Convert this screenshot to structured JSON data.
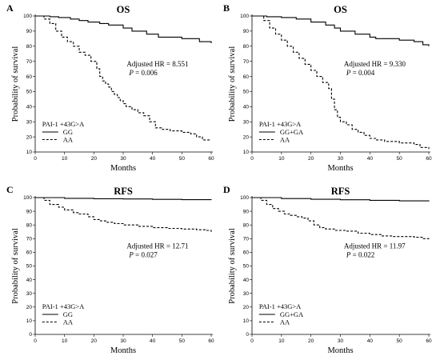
{
  "chart_data": [
    {
      "type": "line",
      "panel": "A",
      "title": "OS",
      "xlabel": "Months",
      "ylabel": "Probability of survival",
      "xlim": [
        0,
        60
      ],
      "ylim": [
        10,
        100
      ],
      "x_ticks": [
        0,
        10,
        20,
        30,
        40,
        50,
        60
      ],
      "y_ticks": [
        10,
        20,
        30,
        40,
        50,
        60,
        70,
        80,
        90,
        100
      ],
      "annotation": {
        "hr": "Adjusted HR = 8.551",
        "p_label": "P",
        "p_value": " = 0.006"
      },
      "legend_title": "PAI-1 +43G>A",
      "series": [
        {
          "name": "GG",
          "style": "solid",
          "x": [
            0,
            5,
            8,
            12,
            15,
            18,
            22,
            25,
            30,
            33,
            38,
            42,
            50,
            56,
            60
          ],
          "y": [
            100,
            99.5,
            99,
            98,
            97,
            96,
            95,
            94,
            92,
            90,
            88,
            86,
            85,
            83,
            82
          ]
        },
        {
          "name": "AA",
          "style": "dashed",
          "x": [
            0,
            3,
            5,
            7,
            9,
            11,
            13,
            15,
            17,
            19,
            21,
            22,
            23,
            24,
            25,
            26,
            27,
            28,
            29,
            30,
            31,
            33,
            35,
            37,
            39,
            41,
            43,
            46,
            50,
            53,
            55,
            57,
            60
          ],
          "y": [
            100,
            98,
            95,
            90,
            86,
            83,
            80,
            76,
            74,
            70,
            65,
            60,
            57,
            55,
            53,
            50,
            48,
            46,
            44,
            42,
            40,
            38,
            36,
            34,
            30,
            26,
            25,
            24,
            23,
            22,
            20,
            18,
            18
          ]
        }
      ]
    },
    {
      "type": "line",
      "panel": "B",
      "title": "OS",
      "xlabel": "Months",
      "ylabel": "Probability of survival",
      "xlim": [
        0,
        60
      ],
      "ylim": [
        10,
        100
      ],
      "x_ticks": [
        0,
        10,
        20,
        30,
        40,
        50,
        60
      ],
      "y_ticks": [
        10,
        20,
        30,
        40,
        50,
        60,
        70,
        80,
        90,
        100
      ],
      "annotation": {
        "hr": "Adjusted HR = 9.330",
        "p_label": "P",
        "p_value": " = 0.004"
      },
      "legend_title": "PAI-1 +43G>A",
      "series": [
        {
          "name": "GG+GA",
          "style": "solid",
          "x": [
            0,
            5,
            10,
            15,
            20,
            25,
            28,
            30,
            35,
            40,
            42,
            50,
            55,
            58,
            60
          ],
          "y": [
            100,
            99.5,
            99,
            98,
            96,
            94,
            92,
            90,
            88,
            86,
            85,
            84,
            83,
            81,
            80
          ]
        },
        {
          "name": "AA",
          "style": "dashed",
          "x": [
            0,
            4,
            6,
            8,
            10,
            12,
            14,
            16,
            18,
            20,
            22,
            24,
            26,
            27,
            28,
            29,
            30,
            32,
            34,
            36,
            38,
            40,
            42,
            45,
            50,
            55,
            57,
            60
          ],
          "y": [
            100,
            97,
            92,
            88,
            84,
            80,
            76,
            72,
            68,
            64,
            60,
            56,
            52,
            45,
            38,
            33,
            30,
            28,
            25,
            23,
            21,
            19,
            18,
            17,
            16,
            15,
            13,
            12
          ]
        }
      ]
    },
    {
      "type": "line",
      "panel": "C",
      "title": "RFS",
      "xlabel": "Months",
      "ylabel": "Probability of survival",
      "xlim": [
        0,
        60
      ],
      "ylim": [
        0,
        100
      ],
      "x_ticks": [
        0,
        10,
        20,
        30,
        40,
        50,
        60
      ],
      "y_ticks": [
        0,
        10,
        20,
        30,
        40,
        50,
        60,
        70,
        80,
        90,
        100
      ],
      "annotation": {
        "hr": "Adjusted HR = 12.71",
        "p_label": "P",
        "p_value": " = 0.027"
      },
      "legend_title": "PAI-1 +43G>A",
      "series": [
        {
          "name": "GG",
          "style": "solid",
          "x": [
            0,
            10,
            20,
            30,
            40,
            50,
            60
          ],
          "y": [
            100,
            99.5,
            99.2,
            99,
            98.7,
            98.5,
            98.3
          ]
        },
        {
          "name": "AA",
          "style": "dashed",
          "x": [
            0,
            3,
            5,
            8,
            10,
            13,
            15,
            18,
            20,
            22,
            24,
            27,
            30,
            35,
            40,
            45,
            50,
            55,
            58,
            60
          ],
          "y": [
            100,
            98,
            95,
            93,
            91,
            89,
            88,
            86,
            84,
            83,
            82,
            81,
            80,
            79,
            78,
            77.5,
            77,
            76.5,
            76,
            75
          ]
        }
      ]
    },
    {
      "type": "line",
      "panel": "D",
      "title": "RFS",
      "xlabel": "Months",
      "ylabel": "Probability of survival",
      "xlim": [
        0,
        60
      ],
      "ylim": [
        0,
        100
      ],
      "x_ticks": [
        0,
        10,
        20,
        30,
        40,
        50,
        60
      ],
      "y_ticks": [
        0,
        10,
        20,
        30,
        40,
        50,
        60,
        70,
        80,
        90,
        100
      ],
      "annotation": {
        "hr": "Adjusted HR = 11.97",
        "p_label": "P",
        "p_value": " = 0.022"
      },
      "legend_title": "PAI-1 +43G>A",
      "series": [
        {
          "name": "GG+GA",
          "style": "solid",
          "x": [
            0,
            10,
            20,
            30,
            40,
            50,
            60
          ],
          "y": [
            100,
            99.3,
            98.8,
            98.4,
            98,
            97.6,
            97.2
          ]
        },
        {
          "name": "AA",
          "style": "dashed",
          "x": [
            0,
            3,
            5,
            7,
            9,
            11,
            13,
            15,
            17,
            19,
            21,
            23,
            25,
            28,
            32,
            36,
            40,
            44,
            48,
            55,
            58,
            60
          ],
          "y": [
            100,
            98,
            95,
            92,
            90,
            88,
            87,
            86,
            85,
            83,
            80,
            78,
            77,
            76,
            75.5,
            74,
            73,
            72,
            71.5,
            71,
            70,
            69
          ]
        }
      ]
    }
  ]
}
